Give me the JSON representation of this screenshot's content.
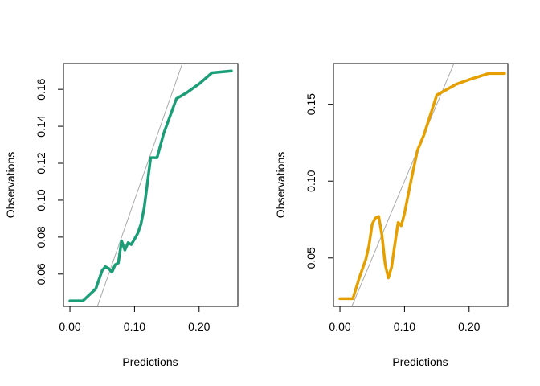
{
  "chart_data": [
    {
      "type": "line",
      "title": "",
      "xlabel": "Predictions",
      "ylabel": "Observations",
      "xlim": [
        -0.01,
        0.26
      ],
      "ylim": [
        0.0425,
        0.174
      ],
      "xticks": [
        0.0,
        0.1,
        0.2
      ],
      "xtick_labels": [
        "0.00",
        "0.10",
        "0.20"
      ],
      "yticks": [
        0.06,
        0.08,
        0.1,
        0.12,
        0.14,
        0.16
      ],
      "ytick_labels": [
        "0.06",
        "0.08",
        "0.10",
        "0.12",
        "0.14",
        "0.16"
      ],
      "grid": false,
      "reference_line": {
        "slope": 1,
        "intercept": 0,
        "color": "#aaaaaa"
      },
      "series": [
        {
          "color": "#1b9e77",
          "x": [
            0.0,
            0.02,
            0.04,
            0.05,
            0.055,
            0.06,
            0.065,
            0.07,
            0.075,
            0.08,
            0.085,
            0.09,
            0.095,
            0.1,
            0.105,
            0.11,
            0.115,
            0.125,
            0.135,
            0.145,
            0.165,
            0.18,
            0.2,
            0.22,
            0.25
          ],
          "y": [
            0.0455,
            0.0455,
            0.052,
            0.062,
            0.064,
            0.063,
            0.061,
            0.065,
            0.066,
            0.078,
            0.073,
            0.077,
            0.076,
            0.079,
            0.082,
            0.087,
            0.096,
            0.123,
            0.123,
            0.136,
            0.155,
            0.158,
            0.163,
            0.169,
            0.17
          ]
        }
      ]
    },
    {
      "type": "line",
      "title": "",
      "xlabel": "Predictions",
      "ylabel": "Observations",
      "xlim": [
        -0.01,
        0.26
      ],
      "ylim": [
        0.0185,
        0.1765
      ],
      "xticks": [
        0.0,
        0.1,
        0.2
      ],
      "xtick_labels": [
        "0.00",
        "0.10",
        "0.20"
      ],
      "yticks": [
        0.05,
        0.1,
        0.15
      ],
      "ytick_labels": [
        "0.05",
        "0.10",
        "0.15"
      ],
      "grid": false,
      "reference_line": {
        "slope": 1,
        "intercept": 0,
        "color": "#aaaaaa"
      },
      "series": [
        {
          "color": "#e69f00",
          "x": [
            0.0,
            0.02,
            0.03,
            0.04,
            0.045,
            0.05,
            0.055,
            0.06,
            0.065,
            0.07,
            0.075,
            0.08,
            0.085,
            0.09,
            0.095,
            0.1,
            0.11,
            0.12,
            0.13,
            0.15,
            0.18,
            0.2,
            0.23,
            0.255
          ],
          "y": [
            0.0235,
            0.0235,
            0.037,
            0.049,
            0.058,
            0.072,
            0.076,
            0.077,
            0.065,
            0.046,
            0.037,
            0.044,
            0.059,
            0.073,
            0.071,
            0.079,
            0.1,
            0.12,
            0.13,
            0.156,
            0.163,
            0.166,
            0.17,
            0.17
          ]
        }
      ]
    }
  ]
}
